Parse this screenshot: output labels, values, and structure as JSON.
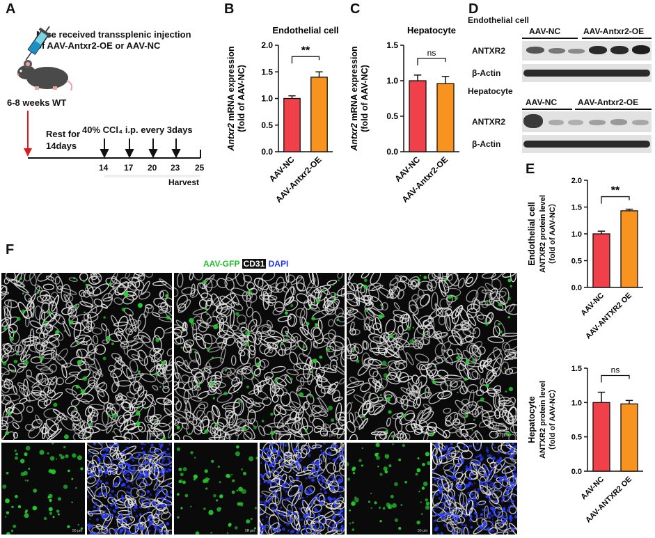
{
  "panels": {
    "A": "A",
    "B": "B",
    "C": "C",
    "D": "D",
    "E": "E",
    "F": "F"
  },
  "panel_a": {
    "injection_line1": "Mice received transsplenic injection",
    "injection_line2": "of AAV-Antxr2-OE or AAV-NC",
    "mouse_label": "6-8 weeks WT",
    "rest_line1": "Rest for",
    "rest_line2": "14days",
    "ccl4_label": "40% CCl₄ i.p. every 3days",
    "timepoints": [
      "14",
      "17",
      "20",
      "23",
      "25"
    ],
    "harvest": "Harvest"
  },
  "panel_d": {
    "endo_title": "Endothelial cell",
    "hep_title": "Hepatocyte",
    "group_nc": "AAV-NC",
    "group_oe": "AAV-Antxr2-OE",
    "row_antxr2": "ANTXR2",
    "row_actin": "β-Actin"
  },
  "panel_f": {
    "legend_gfp": "AAV-GFP",
    "legend_cd31": "CD31",
    "legend_dapi": "DAPI",
    "scale_bar": "50 μm",
    "scale_bar_small": "50 μm"
  },
  "colors": {
    "nc": "#f0404a",
    "oe": "#f7931e",
    "gfp": "#1fbf2a",
    "dapi": "#2233dd",
    "arrow_red": "#e0191b"
  },
  "chart_data": [
    {
      "id": "B",
      "type": "bar",
      "title": "Endothelial cell",
      "ylabel_italic": "Antxr2",
      "ylabel_rest": " mRNA expression",
      "ylabel2": "(fold of AAV-NC)",
      "categories": [
        "AAV-NC",
        "AAV-Antxr2-OE"
      ],
      "values": [
        1.0,
        1.4
      ],
      "errors": [
        0.05,
        0.1
      ],
      "ylim": [
        0,
        2.0
      ],
      "yticks": [
        "0.0",
        "0.5",
        "1.0",
        "1.5",
        "2.0"
      ],
      "significance": "**"
    },
    {
      "id": "C",
      "type": "bar",
      "title": "Hepatocyte",
      "ylabel_italic": "Antxr2",
      "ylabel_rest": " mRNA expression",
      "ylabel2": "(fold of AAV-NC)",
      "categories": [
        "AAV-NC",
        "AAV-Antxr2-OE"
      ],
      "values": [
        1.0,
        0.96
      ],
      "errors": [
        0.08,
        0.1
      ],
      "ylim": [
        0,
        1.5
      ],
      "yticks": [
        "0.0",
        "0.5",
        "1.0",
        "1.5"
      ],
      "significance": "ns"
    },
    {
      "id": "E1",
      "type": "bar",
      "ylabel_top": "Endothelial cell",
      "ylabel_mid": "ANTXR2 protein level",
      "ylabel_bot": "（fold of AAV-NC）",
      "categories": [
        "AAV-NC",
        "AAV-ANTXR2 OE"
      ],
      "values": [
        1.0,
        1.43
      ],
      "errors": [
        0.05,
        0.03
      ],
      "ylim": [
        0,
        2.0
      ],
      "yticks": [
        "0.0",
        "0.5",
        "1.0",
        "1.5",
        "2.0"
      ],
      "significance": "**"
    },
    {
      "id": "E2",
      "type": "bar",
      "ylabel_top": "Hepatocyte",
      "ylabel_mid": "ANTXR2 protein level",
      "ylabel_bot": "（fold of AAV-NC）",
      "categories": [
        "AAV-NC",
        "AAV-ANTXR2 OE"
      ],
      "values": [
        1.0,
        0.98
      ],
      "errors": [
        0.15,
        0.05
      ],
      "ylim": [
        0,
        1.5
      ],
      "yticks": [
        "0.0",
        "0.5",
        "1.0",
        "1.5"
      ],
      "significance": "ns"
    }
  ]
}
